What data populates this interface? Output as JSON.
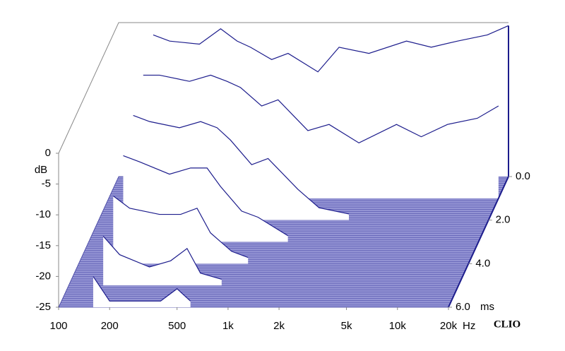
{
  "chart_data": {
    "type": "waterfall",
    "frequencies": [
      160,
      200,
      300,
      400,
      500,
      600,
      800,
      1000,
      1500,
      2000,
      3000,
      5000,
      7000,
      10000,
      15000,
      20000
    ],
    "xlim": [
      100,
      20000
    ],
    "log_x": true,
    "xticks": [
      100,
      200,
      500,
      {
        "value": 1000,
        "label": "1k"
      },
      {
        "value": 2000,
        "label": "2k"
      },
      {
        "value": 5000,
        "label": "5k"
      },
      {
        "value": 10000,
        "label": "10k"
      },
      {
        "value": 20000,
        "label": "20k"
      }
    ],
    "x_unit": "Hz",
    "ylim": [
      -25,
      0
    ],
    "yticks": [
      0,
      -5,
      -10,
      -15,
      -20,
      -25
    ],
    "y_label": "dB",
    "tlim": [
      0,
      6
    ],
    "tticks": [
      {
        "value": 0,
        "label": "0.0"
      },
      {
        "value": 2,
        "label": "2.0"
      },
      {
        "value": 4,
        "label": "4.0"
      },
      {
        "value": 6,
        "label": "6.0"
      }
    ],
    "t_unit": "ms",
    "color": "#1c1c8c",
    "floor_color": "#9494d4",
    "slices": [
      {
        "time": 0,
        "values": [
          -2,
          -3,
          -3.5,
          -1,
          -3,
          -4,
          -6,
          -5,
          -8,
          -4,
          -5,
          -3,
          -4,
          -3,
          -2,
          -0.5
        ]
      },
      {
        "time": 1,
        "values": [
          -5,
          -5,
          -6,
          -5,
          -6,
          -7,
          -10,
          -9,
          -14,
          -13,
          -16,
          -13,
          -15,
          -13,
          -12,
          -10
        ]
      },
      {
        "time": 2,
        "values": [
          -8,
          -9,
          -10,
          -9,
          -10,
          -12,
          -16,
          -15,
          -20,
          -23,
          -24,
          null,
          null,
          null,
          null,
          null
        ]
      },
      {
        "time": 3,
        "values": [
          -11,
          -12,
          -14,
          -13,
          -13,
          -16,
          -20,
          -21,
          -24,
          null,
          null,
          null,
          null,
          null,
          null,
          null
        ]
      },
      {
        "time": 4,
        "values": [
          -14,
          -16,
          -17,
          -17,
          -16,
          -20,
          -23,
          -24,
          null,
          null,
          null,
          null,
          null,
          null,
          null,
          null
        ]
      },
      {
        "time": 5,
        "values": [
          -17,
          -20,
          -22,
          -21,
          -19,
          -23,
          -24,
          null,
          null,
          null,
          null,
          null,
          null,
          null,
          null,
          null
        ]
      },
      {
        "time": 6,
        "values": [
          -20,
          -24,
          -24,
          -24,
          -22,
          -24,
          null,
          null,
          null,
          null,
          null,
          null,
          null,
          null,
          null,
          null
        ]
      }
    ],
    "brand": "CLIO"
  }
}
